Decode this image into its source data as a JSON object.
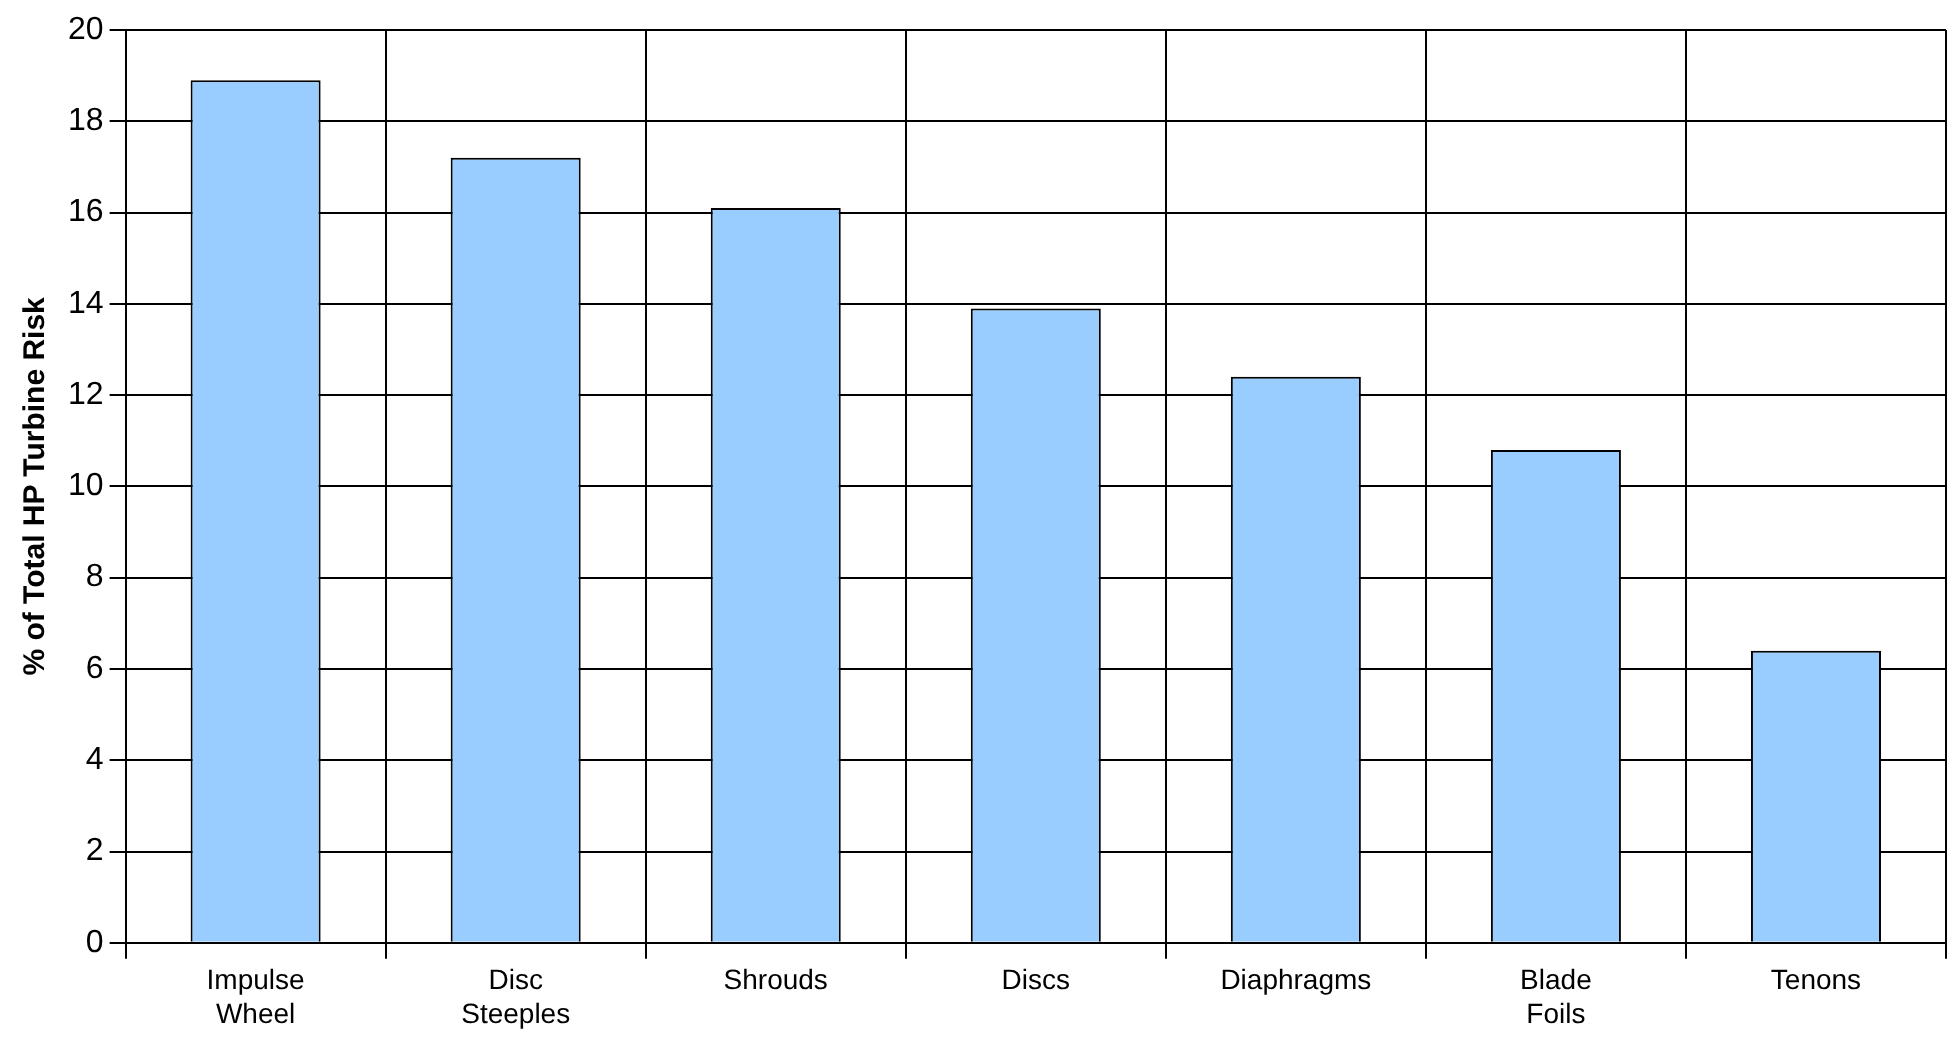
{
  "chart_data": {
    "type": "bar",
    "ylabel": "% of Total HP Turbine Risk",
    "categories": [
      "Impulse Wheel",
      "Disc Steeples",
      "Shrouds",
      "Discs",
      "Diaphragms",
      "Blade Foils",
      "Tenons"
    ],
    "values": [
      18.9,
      17.2,
      16.1,
      13.9,
      12.4,
      10.8,
      6.4
    ],
    "color": "#99ccff",
    "ylim": [
      0,
      20
    ],
    "yticks": [
      0,
      2,
      4,
      6,
      8,
      10,
      12,
      14,
      16,
      18,
      20
    ],
    "grid": true
  }
}
